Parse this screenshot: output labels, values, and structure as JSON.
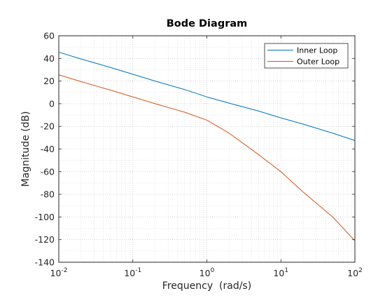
{
  "chart_data": {
    "type": "line",
    "title": "Bode Diagram",
    "xlabel": "Frequency  (rad/s)",
    "ylabel": "Magnitude (dB)",
    "xscale": "log",
    "xlim": [
      0.01,
      100
    ],
    "ylim": [
      -140,
      60
    ],
    "yticks": [
      60,
      40,
      20,
      0,
      -20,
      -40,
      -60,
      -80,
      -100,
      -120,
      -140
    ],
    "xticks": [
      {
        "value": 0.01,
        "base": "10",
        "exp": "-2"
      },
      {
        "value": 0.1,
        "base": "10",
        "exp": "-1"
      },
      {
        "value": 1,
        "base": "10",
        "exp": "0"
      },
      {
        "value": 10,
        "base": "10",
        "exp": "1"
      },
      {
        "value": 100,
        "base": "10",
        "exp": "2"
      }
    ],
    "grid": "minor-dotted",
    "legend_position": "top-right",
    "series": [
      {
        "name": "Inner Loop",
        "color": "#0072BD",
        "x": [
          0.01,
          0.02,
          0.05,
          0.1,
          0.2,
          0.5,
          1,
          2,
          5,
          10,
          20,
          50,
          100
        ],
        "y": [
          45.5,
          39.5,
          32,
          26,
          20,
          12.5,
          6,
          0.5,
          -6.5,
          -12.5,
          -18,
          -26,
          -32.5
        ]
      },
      {
        "name": "Outer Loop",
        "color": "#D95319",
        "x": [
          0.01,
          0.02,
          0.05,
          0.1,
          0.2,
          0.5,
          1,
          2,
          5,
          10,
          20,
          50,
          100
        ],
        "y": [
          25.5,
          19.5,
          12,
          6,
          0,
          -7.5,
          -14.5,
          -26,
          -45,
          -60,
          -78,
          -100,
          -121
        ]
      }
    ]
  }
}
